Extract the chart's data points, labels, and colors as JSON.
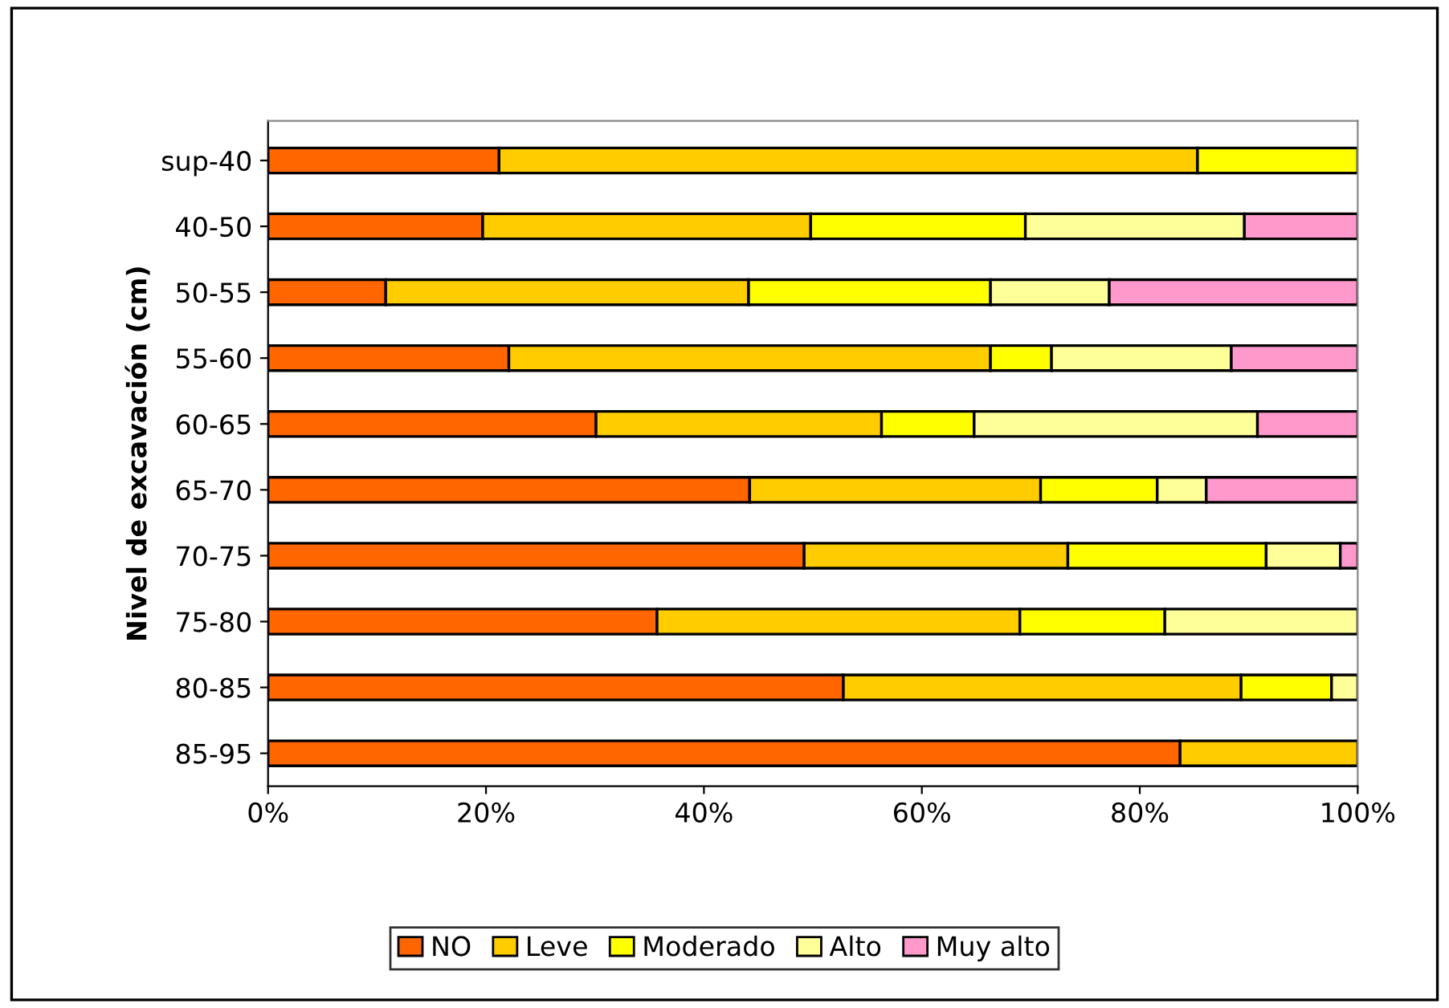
{
  "chart_data": {
    "type": "bar",
    "orientation": "horizontal",
    "stacked": true,
    "ylabel": "Nivel de excavación (cm)",
    "categories": [
      "sup-40",
      "40-50",
      "50-55",
      "55-60",
      "60-65",
      "65-70",
      "70-75",
      "75-80",
      "80-85",
      "85-95"
    ],
    "series": [
      {
        "name": "NO",
        "color": "#ff6600",
        "values": [
          21.2,
          19.7,
          10.8,
          22.1,
          30.1,
          44.2,
          49.2,
          35.7,
          52.8,
          83.7
        ]
      },
      {
        "name": "Leve",
        "color": "#ffcc00",
        "values": [
          64.1,
          30.1,
          33.3,
          44.2,
          26.2,
          26.7,
          24.2,
          33.3,
          36.5,
          16.3
        ]
      },
      {
        "name": "Moderado",
        "color": "#ffff00",
        "values": [
          14.7,
          19.7,
          22.2,
          5.6,
          8.5,
          10.7,
          18.2,
          13.3,
          8.3,
          null
        ]
      },
      {
        "name": "Alto",
        "color": "#ffff99",
        "values": [
          null,
          20.1,
          10.9,
          16.5,
          26.0,
          4.5,
          6.8,
          17.7,
          2.4,
          null
        ]
      },
      {
        "name": "Muy alto",
        "color": "#ff99cc",
        "values": [
          null,
          10.4,
          22.8,
          11.6,
          9.2,
          13.9,
          1.6,
          null,
          null,
          null
        ]
      }
    ],
    "xlim": [
      0,
      100
    ],
    "xticks": [
      {
        "value": 0,
        "label": "0%"
      },
      {
        "value": 20,
        "label": "20%"
      },
      {
        "value": 40,
        "label": "40%"
      },
      {
        "value": 60,
        "label": "60%"
      },
      {
        "value": 80,
        "label": "80%"
      },
      {
        "value": 100,
        "label": "100%"
      }
    ],
    "grid": false,
    "legend": "bottom"
  }
}
